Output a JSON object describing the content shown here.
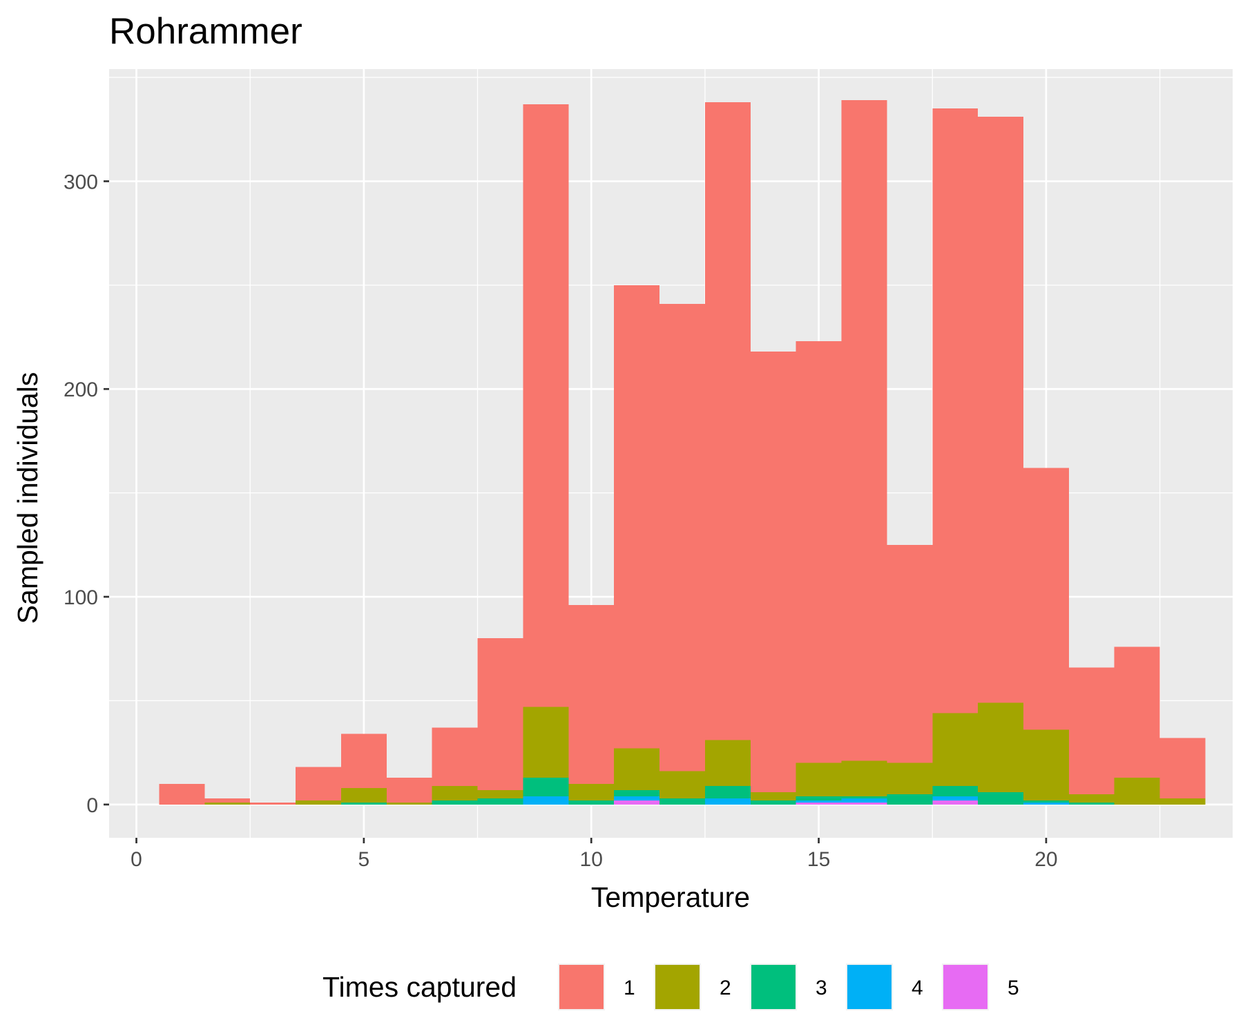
{
  "chart_data": {
    "type": "bar",
    "stacked": true,
    "title": "Rohrammer",
    "xlabel": "Temperature",
    "ylabel": "Sampled individuals",
    "x": [
      1,
      2,
      3,
      4,
      5,
      6,
      7,
      8,
      9,
      10,
      11,
      12,
      13,
      14,
      15,
      16,
      17,
      18,
      19,
      20,
      21,
      22,
      23
    ],
    "xlim": [
      -0.6,
      24.1
    ],
    "ylim": [
      -16,
      354
    ],
    "x_ticks": [
      0,
      5,
      10,
      15,
      20
    ],
    "x_tick_labels": [
      "0",
      "5",
      "10",
      "15",
      "20"
    ],
    "y_ticks": [
      0,
      100,
      200,
      300
    ],
    "y_tick_labels": [
      "0",
      "100",
      "200",
      "300"
    ],
    "grid": true,
    "legend": {
      "title": "Times captured",
      "position": "bottom"
    },
    "series": [
      {
        "name": "1",
        "color": "#F8766D",
        "values": [
          10,
          2,
          1,
          16,
          26,
          12,
          28,
          73,
          290,
          86,
          223,
          225,
          307,
          212,
          203,
          318,
          105,
          291,
          282,
          126,
          61,
          63,
          29
        ]
      },
      {
        "name": "2",
        "color": "#A3A500",
        "values": [
          0,
          1,
          0,
          2,
          7,
          1,
          7,
          4,
          34,
          8,
          20,
          13,
          22,
          4,
          16,
          17,
          15,
          35,
          43,
          34,
          4,
          13,
          3
        ]
      },
      {
        "name": "3",
        "color": "#00BF7D",
        "values": [
          0,
          0,
          0,
          0,
          1,
          0,
          2,
          3,
          9,
          2,
          3,
          3,
          6,
          2,
          2,
          1,
          5,
          5,
          6,
          1,
          1,
          0,
          0
        ]
      },
      {
        "name": "4",
        "color": "#00B0F6",
        "values": [
          0,
          0,
          0,
          0,
          0,
          0,
          0,
          0,
          4,
          0,
          2,
          0,
          3,
          0,
          1,
          2,
          0,
          2,
          0,
          1,
          0,
          0,
          0
        ]
      },
      {
        "name": "5",
        "color": "#E76BF3",
        "values": [
          0,
          0,
          0,
          0,
          0,
          0,
          0,
          0,
          0,
          0,
          2,
          0,
          0,
          0,
          1,
          1,
          0,
          2,
          0,
          0,
          0,
          0,
          0
        ]
      }
    ]
  }
}
